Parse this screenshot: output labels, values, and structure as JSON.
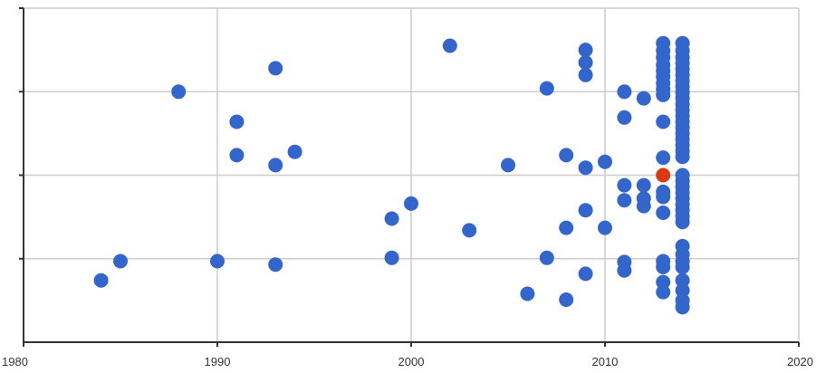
{
  "chart_data": {
    "type": "scatter",
    "title": "",
    "xlabel": "",
    "ylabel": "",
    "xlim": [
      1980,
      2020
    ],
    "ylim": [
      0,
      4
    ],
    "x_ticks": [
      1980,
      1990,
      2000,
      2010,
      2020
    ],
    "x_tick_labels": [
      "1980",
      "1990",
      "2000",
      "2010",
      "2020"
    ],
    "y_gridlines": [
      1,
      2,
      3
    ],
    "grid": true,
    "y_tick_labels_visible": false,
    "colors": {
      "point": "#3366cc",
      "highlight": "#dc3912",
      "grid": "#cccccc",
      "axis": "#333333"
    },
    "series": [
      {
        "color": "#3366cc",
        "points": [
          [
            1984,
            0.74
          ],
          [
            1985,
            0.97
          ],
          [
            1988,
            3.0
          ],
          [
            1990,
            0.97
          ],
          [
            1991,
            2.64
          ],
          [
            1991,
            2.24
          ],
          [
            1993,
            3.28
          ],
          [
            1993,
            2.12
          ],
          [
            1993,
            0.93
          ],
          [
            1994,
            2.28
          ],
          [
            1999,
            1.48
          ],
          [
            1999,
            1.01
          ],
          [
            2000,
            1.66
          ],
          [
            2002,
            3.55
          ],
          [
            2003,
            1.34
          ],
          [
            2005,
            2.12
          ],
          [
            2006,
            0.58
          ],
          [
            2007,
            3.04
          ],
          [
            2007,
            1.01
          ],
          [
            2008,
            2.24
          ],
          [
            2008,
            1.37
          ],
          [
            2008,
            0.51
          ],
          [
            2009,
            3.5
          ],
          [
            2009,
            3.35
          ],
          [
            2009,
            3.2
          ],
          [
            2009,
            2.09
          ],
          [
            2009,
            1.58
          ],
          [
            2009,
            0.82
          ],
          [
            2010,
            2.16
          ],
          [
            2010,
            1.37
          ],
          [
            2011,
            3.0
          ],
          [
            2011,
            2.69
          ],
          [
            2011,
            1.88
          ],
          [
            2011,
            1.7
          ],
          [
            2011,
            0.96
          ],
          [
            2011,
            0.86
          ],
          [
            2012,
            2.92
          ],
          [
            2012,
            1.88
          ],
          [
            2012,
            1.72
          ],
          [
            2012,
            1.63
          ],
          [
            2013,
            3.58
          ],
          [
            2013,
            3.49
          ],
          [
            2013,
            3.41
          ],
          [
            2013,
            3.32
          ],
          [
            2013,
            3.25
          ],
          [
            2013,
            3.18
          ],
          [
            2013,
            3.1
          ],
          [
            2013,
            3.03
          ],
          [
            2013,
            2.96
          ],
          [
            2013,
            2.64
          ],
          [
            2013,
            2.21
          ],
          [
            2013,
            1.8
          ],
          [
            2013,
            1.74
          ],
          [
            2013,
            1.55
          ],
          [
            2013,
            0.97
          ],
          [
            2013,
            0.9
          ],
          [
            2013,
            0.72
          ],
          [
            2013,
            0.6
          ],
          [
            2014,
            3.58
          ],
          [
            2014,
            3.49
          ],
          [
            2014,
            3.41
          ],
          [
            2014,
            3.34
          ],
          [
            2014,
            3.27
          ],
          [
            2014,
            3.2
          ],
          [
            2014,
            3.13
          ],
          [
            2014,
            3.06
          ],
          [
            2014,
            2.99
          ],
          [
            2014,
            2.92
          ],
          [
            2014,
            2.85
          ],
          [
            2014,
            2.78
          ],
          [
            2014,
            2.71
          ],
          [
            2014,
            2.64
          ],
          [
            2014,
            2.57
          ],
          [
            2014,
            2.5
          ],
          [
            2014,
            2.43
          ],
          [
            2014,
            2.36
          ],
          [
            2014,
            2.29
          ],
          [
            2014,
            2.22
          ],
          [
            2014,
            2.0
          ],
          [
            2014,
            1.93
          ],
          [
            2014,
            1.86
          ],
          [
            2014,
            1.79
          ],
          [
            2014,
            1.72
          ],
          [
            2014,
            1.65
          ],
          [
            2014,
            1.58
          ],
          [
            2014,
            1.51
          ],
          [
            2014,
            1.44
          ],
          [
            2014,
            1.15
          ],
          [
            2014,
            1.05
          ],
          [
            2014,
            0.97
          ],
          [
            2014,
            0.9
          ],
          [
            2014,
            0.74
          ],
          [
            2014,
            0.62
          ],
          [
            2014,
            0.5
          ],
          [
            2014,
            0.42
          ]
        ]
      },
      {
        "color": "#dc3912",
        "points": [
          [
            2013,
            2.0
          ]
        ]
      }
    ]
  }
}
